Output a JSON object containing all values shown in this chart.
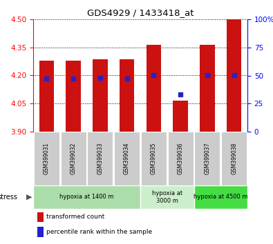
{
  "title": "GDS4929 / 1433418_at",
  "samples": [
    "GSM399031",
    "GSM399032",
    "GSM399033",
    "GSM399034",
    "GSM399035",
    "GSM399036",
    "GSM399037",
    "GSM399038"
  ],
  "bar_bottom": 3.9,
  "bar_tops": [
    4.28,
    4.28,
    4.285,
    4.285,
    4.365,
    4.065,
    4.365,
    4.5
  ],
  "percentile_ranks": [
    47,
    47,
    48,
    47,
    50,
    33,
    50,
    50
  ],
  "ylim_left": [
    3.9,
    4.5
  ],
  "ylim_right": [
    0,
    100
  ],
  "yticks_left": [
    3.9,
    4.05,
    4.2,
    4.35,
    4.5
  ],
  "yticks_right": [
    0,
    25,
    50,
    75,
    100
  ],
  "bar_color": "#cc1111",
  "blue_color": "#2222cc",
  "tick_bg": "#cccccc",
  "stress_groups": [
    {
      "label": "hypoxia at 1400 m",
      "samples": [
        0,
        1,
        2,
        3
      ],
      "color": "#aaddaa"
    },
    {
      "label": "hypoxia at\n3000 m",
      "samples": [
        4,
        5
      ],
      "color": "#cceecc"
    },
    {
      "label": "hypoxia at 4500 m",
      "samples": [
        6,
        7
      ],
      "color": "#44dd44"
    }
  ],
  "legend_bar_label": "transformed count",
  "legend_dot_label": "percentile rank within the sample",
  "bar_width": 0.55
}
